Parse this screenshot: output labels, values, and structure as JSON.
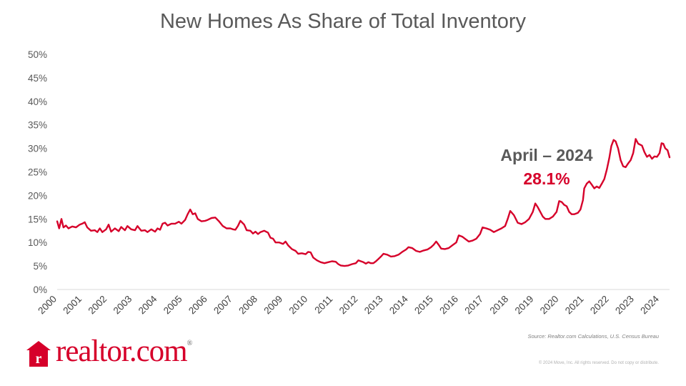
{
  "chart_data": {
    "type": "line",
    "title": "New Homes As Share of Total Inventory",
    "ylabel": "",
    "xlabel": "",
    "ylim": [
      0,
      50
    ],
    "yticks": [
      "0%",
      "5%",
      "10%",
      "15%",
      "20%",
      "25%",
      "30%",
      "35%",
      "40%",
      "45%",
      "50%"
    ],
    "xticks": [
      "2000",
      "2001",
      "2002",
      "2003",
      "2004",
      "2005",
      "2006",
      "2007",
      "2008",
      "2009",
      "2010",
      "2011",
      "2012",
      "2013",
      "2014",
      "2015",
      "2016",
      "2017",
      "2018",
      "2019",
      "2020",
      "2021",
      "2022",
      "2023",
      "2024"
    ],
    "xlim": [
      2000.0,
      2024.4
    ],
    "grid": false,
    "series": [
      {
        "color": "#d6002a",
        "points": [
          [
            2000.0,
            14.5
          ],
          [
            2000.08,
            13.0
          ],
          [
            2000.17,
            15.0
          ],
          [
            2000.25,
            13.2
          ],
          [
            2000.35,
            13.6
          ],
          [
            2000.45,
            13.0
          ],
          [
            2000.6,
            13.4
          ],
          [
            2000.75,
            13.2
          ],
          [
            2000.9,
            13.8
          ],
          [
            2001.0,
            14.0
          ],
          [
            2001.1,
            14.3
          ],
          [
            2001.2,
            13.2
          ],
          [
            2001.35,
            12.5
          ],
          [
            2001.5,
            12.6
          ],
          [
            2001.6,
            12.2
          ],
          [
            2001.7,
            13.0
          ],
          [
            2001.8,
            12.2
          ],
          [
            2001.95,
            12.8
          ],
          [
            2002.05,
            13.8
          ],
          [
            2002.15,
            12.3
          ],
          [
            2002.3,
            13.0
          ],
          [
            2002.45,
            12.4
          ],
          [
            2002.55,
            13.3
          ],
          [
            2002.7,
            12.6
          ],
          [
            2002.8,
            13.5
          ],
          [
            2002.95,
            12.8
          ],
          [
            2003.1,
            12.6
          ],
          [
            2003.2,
            13.5
          ],
          [
            2003.35,
            12.5
          ],
          [
            2003.5,
            12.6
          ],
          [
            2003.6,
            12.2
          ],
          [
            2003.75,
            12.8
          ],
          [
            2003.9,
            12.3
          ],
          [
            2004.0,
            13.0
          ],
          [
            2004.1,
            12.7
          ],
          [
            2004.2,
            14.0
          ],
          [
            2004.3,
            14.2
          ],
          [
            2004.4,
            13.6
          ],
          [
            2004.55,
            14.0
          ],
          [
            2004.7,
            14.0
          ],
          [
            2004.85,
            14.4
          ],
          [
            2004.95,
            14.0
          ],
          [
            2005.1,
            14.8
          ],
          [
            2005.2,
            16.0
          ],
          [
            2005.3,
            17.0
          ],
          [
            2005.4,
            16.0
          ],
          [
            2005.5,
            16.2
          ],
          [
            2005.6,
            15.0
          ],
          [
            2005.75,
            14.5
          ],
          [
            2005.9,
            14.6
          ],
          [
            2006.0,
            14.8
          ],
          [
            2006.15,
            15.2
          ],
          [
            2006.3,
            15.3
          ],
          [
            2006.45,
            14.5
          ],
          [
            2006.6,
            13.5
          ],
          [
            2006.75,
            13.0
          ],
          [
            2006.9,
            13.0
          ],
          [
            2007.0,
            12.8
          ],
          [
            2007.1,
            12.7
          ],
          [
            2007.2,
            13.5
          ],
          [
            2007.3,
            14.6
          ],
          [
            2007.45,
            13.8
          ],
          [
            2007.55,
            12.6
          ],
          [
            2007.7,
            12.5
          ],
          [
            2007.8,
            11.9
          ],
          [
            2007.9,
            12.3
          ],
          [
            2008.0,
            11.8
          ],
          [
            2008.1,
            12.2
          ],
          [
            2008.25,
            12.5
          ],
          [
            2008.4,
            12.1
          ],
          [
            2008.5,
            11.0
          ],
          [
            2008.6,
            10.8
          ],
          [
            2008.7,
            10.0
          ],
          [
            2008.85,
            10.0
          ],
          [
            2009.0,
            9.7
          ],
          [
            2009.1,
            10.2
          ],
          [
            2009.2,
            9.4
          ],
          [
            2009.35,
            8.6
          ],
          [
            2009.5,
            8.2
          ],
          [
            2009.6,
            7.6
          ],
          [
            2009.75,
            7.7
          ],
          [
            2009.9,
            7.5
          ],
          [
            2010.0,
            8.0
          ],
          [
            2010.1,
            7.9
          ],
          [
            2010.2,
            6.8
          ],
          [
            2010.35,
            6.2
          ],
          [
            2010.5,
            5.8
          ],
          [
            2010.65,
            5.6
          ],
          [
            2010.8,
            5.8
          ],
          [
            2010.95,
            6.0
          ],
          [
            2011.1,
            5.9
          ],
          [
            2011.2,
            5.4
          ],
          [
            2011.3,
            5.1
          ],
          [
            2011.45,
            5.0
          ],
          [
            2011.6,
            5.1
          ],
          [
            2011.75,
            5.4
          ],
          [
            2011.9,
            5.6
          ],
          [
            2012.0,
            6.2
          ],
          [
            2012.1,
            6.0
          ],
          [
            2012.2,
            5.8
          ],
          [
            2012.3,
            5.5
          ],
          [
            2012.4,
            5.8
          ],
          [
            2012.5,
            5.6
          ],
          [
            2012.6,
            5.6
          ],
          [
            2012.7,
            6.0
          ],
          [
            2012.8,
            6.5
          ],
          [
            2012.9,
            7.0
          ],
          [
            2013.0,
            7.6
          ],
          [
            2013.15,
            7.4
          ],
          [
            2013.3,
            7.0
          ],
          [
            2013.45,
            7.1
          ],
          [
            2013.6,
            7.4
          ],
          [
            2013.75,
            8.0
          ],
          [
            2013.9,
            8.5
          ],
          [
            2014.0,
            9.0
          ],
          [
            2014.15,
            8.8
          ],
          [
            2014.3,
            8.2
          ],
          [
            2014.45,
            8.0
          ],
          [
            2014.6,
            8.3
          ],
          [
            2014.75,
            8.5
          ],
          [
            2014.9,
            9.0
          ],
          [
            2015.0,
            9.5
          ],
          [
            2015.1,
            10.2
          ],
          [
            2015.2,
            9.5
          ],
          [
            2015.3,
            8.7
          ],
          [
            2015.45,
            8.6
          ],
          [
            2015.6,
            8.8
          ],
          [
            2015.75,
            9.4
          ],
          [
            2015.9,
            10.0
          ],
          [
            2016.0,
            11.5
          ],
          [
            2016.15,
            11.2
          ],
          [
            2016.3,
            10.6
          ],
          [
            2016.4,
            10.2
          ],
          [
            2016.55,
            10.4
          ],
          [
            2016.7,
            10.8
          ],
          [
            2016.85,
            11.8
          ],
          [
            2016.95,
            13.2
          ],
          [
            2017.1,
            13.0
          ],
          [
            2017.25,
            12.7
          ],
          [
            2017.4,
            12.2
          ],
          [
            2017.55,
            12.6
          ],
          [
            2017.7,
            13.0
          ],
          [
            2017.85,
            13.5
          ],
          [
            2017.95,
            15.0
          ],
          [
            2018.05,
            16.7
          ],
          [
            2018.2,
            15.8
          ],
          [
            2018.35,
            14.2
          ],
          [
            2018.5,
            13.9
          ],
          [
            2018.65,
            14.3
          ],
          [
            2018.8,
            15.0
          ],
          [
            2018.95,
            16.5
          ],
          [
            2019.05,
            18.3
          ],
          [
            2019.15,
            17.5
          ],
          [
            2019.25,
            16.5
          ],
          [
            2019.35,
            15.5
          ],
          [
            2019.45,
            15.0
          ],
          [
            2019.6,
            15.0
          ],
          [
            2019.75,
            15.5
          ],
          [
            2019.9,
            16.5
          ],
          [
            2020.0,
            18.8
          ],
          [
            2020.1,
            18.6
          ],
          [
            2020.2,
            18.0
          ],
          [
            2020.3,
            17.7
          ],
          [
            2020.4,
            16.5
          ],
          [
            2020.5,
            16.0
          ],
          [
            2020.6,
            16.0
          ],
          [
            2020.75,
            16.3
          ],
          [
            2020.85,
            17.0
          ],
          [
            2020.95,
            19.0
          ],
          [
            2021.0,
            21.5
          ],
          [
            2021.1,
            22.5
          ],
          [
            2021.2,
            23.0
          ],
          [
            2021.3,
            22.3
          ],
          [
            2021.4,
            21.5
          ],
          [
            2021.5,
            21.9
          ],
          [
            2021.6,
            21.6
          ],
          [
            2021.7,
            22.5
          ],
          [
            2021.8,
            23.5
          ],
          [
            2021.9,
            25.5
          ],
          [
            2022.0,
            28.0
          ],
          [
            2022.08,
            30.5
          ],
          [
            2022.17,
            31.8
          ],
          [
            2022.25,
            31.5
          ],
          [
            2022.35,
            30.0
          ],
          [
            2022.45,
            27.5
          ],
          [
            2022.55,
            26.2
          ],
          [
            2022.65,
            26.0
          ],
          [
            2022.75,
            26.8
          ],
          [
            2022.85,
            27.5
          ],
          [
            2022.95,
            29.0
          ],
          [
            2023.05,
            32.0
          ],
          [
            2023.15,
            31.0
          ],
          [
            2023.3,
            30.6
          ],
          [
            2023.4,
            29.2
          ],
          [
            2023.5,
            28.2
          ],
          [
            2023.6,
            28.6
          ],
          [
            2023.7,
            27.8
          ],
          [
            2023.8,
            28.3
          ],
          [
            2023.9,
            28.2
          ],
          [
            2024.0,
            29.0
          ],
          [
            2024.08,
            31.1
          ],
          [
            2024.15,
            31.0
          ],
          [
            2024.23,
            30.0
          ],
          [
            2024.32,
            29.6
          ],
          [
            2024.4,
            28.1
          ]
        ]
      }
    ],
    "annotation": {
      "label": "April – 2024",
      "value": "28.1%",
      "label_color": "#595959",
      "value_color": "#d6002a"
    }
  },
  "source": "Source: Realtor.com Calculations, U.S. Census Bureau",
  "copyright": "© 2024 Move, Inc. All rights reserved. Do not copy or distribute.",
  "logo": {
    "text": "realtor.com",
    "mark": "®",
    "icon": "house-r-icon",
    "color": "#d6002a"
  }
}
